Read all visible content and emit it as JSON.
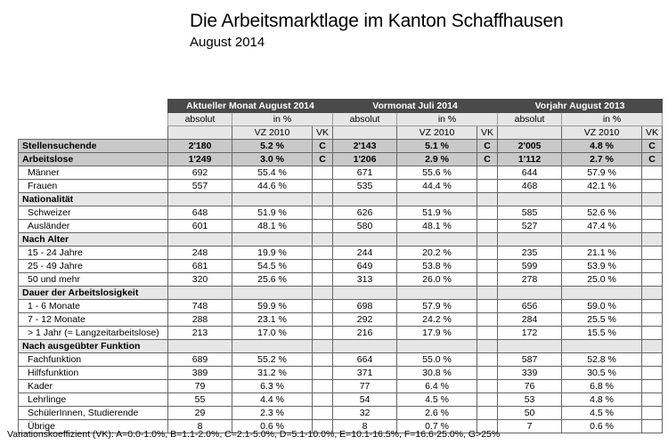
{
  "title": "Die Arbeitsmarktlage im Kanton Schaffhausen",
  "subtitle": "August 2014",
  "groups": [
    {
      "label": "Aktueller Monat August 2014",
      "abs_label": "absolut",
      "pct_label": "in %",
      "vz_label": "VZ 2010",
      "vk_label": "VK"
    },
    {
      "label": "Vormonat Juli 2014",
      "abs_label": "absolut",
      "pct_label": "in %",
      "vz_label": "VZ 2010",
      "vk_label": "VK"
    },
    {
      "label": "Vorjahr August 2013",
      "abs_label": "absolut",
      "pct_label": "in %",
      "vz_label": "VZ 2010",
      "vk_label": "VK"
    }
  ],
  "rows": [
    {
      "type": "main",
      "label": "Stellensuchende",
      "values": [
        [
          "2'180",
          "5.2 %",
          "C"
        ],
        [
          "2'143",
          "5.1 %",
          "C"
        ],
        [
          "2'005",
          "4.8 %",
          "C"
        ]
      ]
    },
    {
      "type": "main",
      "label": "Arbeitslose",
      "values": [
        [
          "1'249",
          "3.0 %",
          "C"
        ],
        [
          "1'206",
          "2.9 %",
          "C"
        ],
        [
          "1'112",
          "2.7 %",
          "C"
        ]
      ]
    },
    {
      "type": "row",
      "label": "Männer",
      "values": [
        [
          "692",
          "55.4 %",
          ""
        ],
        [
          "671",
          "55.6 %",
          ""
        ],
        [
          "644",
          "57.9 %",
          ""
        ]
      ]
    },
    {
      "type": "row",
      "label": "Frauen",
      "values": [
        [
          "557",
          "44.6 %",
          ""
        ],
        [
          "535",
          "44.4 %",
          ""
        ],
        [
          "468",
          "42.1 %",
          ""
        ]
      ]
    },
    {
      "type": "section",
      "label": "Nationalität"
    },
    {
      "type": "row",
      "label": "Schweizer",
      "values": [
        [
          "648",
          "51.9 %",
          ""
        ],
        [
          "626",
          "51.9 %",
          ""
        ],
        [
          "585",
          "52.6 %",
          ""
        ]
      ]
    },
    {
      "type": "row",
      "label": "Ausländer",
      "values": [
        [
          "601",
          "48.1 %",
          ""
        ],
        [
          "580",
          "48.1 %",
          ""
        ],
        [
          "527",
          "47.4 %",
          ""
        ]
      ]
    },
    {
      "type": "section",
      "label": "Nach Alter"
    },
    {
      "type": "row",
      "label": "15 - 24 Jahre",
      "values": [
        [
          "248",
          "19.9 %",
          ""
        ],
        [
          "244",
          "20.2 %",
          ""
        ],
        [
          "235",
          "21.1 %",
          ""
        ]
      ]
    },
    {
      "type": "row",
      "label": "25 - 49 Jahre",
      "values": [
        [
          "681",
          "54.5 %",
          ""
        ],
        [
          "649",
          "53.8 %",
          ""
        ],
        [
          "599",
          "53.9 %",
          ""
        ]
      ]
    },
    {
      "type": "row",
      "label": "50 und mehr",
      "values": [
        [
          "320",
          "25.6 %",
          ""
        ],
        [
          "313",
          "26.0 %",
          ""
        ],
        [
          "278",
          "25.0 %",
          ""
        ]
      ]
    },
    {
      "type": "section",
      "label": "Dauer der Arbeitslosigkeit"
    },
    {
      "type": "row",
      "label": "1 - 6 Monate",
      "values": [
        [
          "748",
          "59.9 %",
          ""
        ],
        [
          "698",
          "57.9 %",
          ""
        ],
        [
          "656",
          "59.0 %",
          ""
        ]
      ]
    },
    {
      "type": "row",
      "label": "7 - 12 Monate",
      "values": [
        [
          "288",
          "23.1 %",
          ""
        ],
        [
          "292",
          "24.2 %",
          ""
        ],
        [
          "284",
          "25.5 %",
          ""
        ]
      ]
    },
    {
      "type": "row",
      "label": "> 1 Jahr (= Langzeitarbeitslose)",
      "values": [
        [
          "213",
          "17.0 %",
          ""
        ],
        [
          "216",
          "17.9 %",
          ""
        ],
        [
          "172",
          "15.5 %",
          ""
        ]
      ]
    },
    {
      "type": "section",
      "label": "Nach ausgeübter Funktion"
    },
    {
      "type": "row",
      "label": "Fachfunktion",
      "values": [
        [
          "689",
          "55.2 %",
          ""
        ],
        [
          "664",
          "55.0 %",
          ""
        ],
        [
          "587",
          "52.8 %",
          ""
        ]
      ]
    },
    {
      "type": "row",
      "label": "Hilfsfunktion",
      "values": [
        [
          "389",
          "31.2 %",
          ""
        ],
        [
          "371",
          "30.8 %",
          ""
        ],
        [
          "339",
          "30.5 %",
          ""
        ]
      ]
    },
    {
      "type": "row",
      "label": "Kader",
      "values": [
        [
          "79",
          "6.3 %",
          ""
        ],
        [
          "77",
          "6.4 %",
          ""
        ],
        [
          "76",
          "6.8 %",
          ""
        ]
      ]
    },
    {
      "type": "row",
      "label": "Lehrlinge",
      "values": [
        [
          "55",
          "4.4 %",
          ""
        ],
        [
          "54",
          "4.5 %",
          ""
        ],
        [
          "53",
          "4.8 %",
          ""
        ]
      ]
    },
    {
      "type": "row",
      "label": "SchülerInnen, Studierende",
      "values": [
        [
          "29",
          "2.3 %",
          ""
        ],
        [
          "32",
          "2.6 %",
          ""
        ],
        [
          "50",
          "4.5 %",
          ""
        ]
      ]
    },
    {
      "type": "row",
      "label": "Übrige",
      "values": [
        [
          "8",
          "0.6 %",
          ""
        ],
        [
          "8",
          "0.7 %",
          ""
        ],
        [
          "7",
          "0.6 %",
          ""
        ]
      ]
    }
  ],
  "footnote": "Variationskoeffizient (VK): A=0.0-1.0%, B=1.1-2.0%, C=2.1-5.0%, D=5.1-10.0%, E=10.1-16.5%, F=16.6-25.0%, G>25%"
}
